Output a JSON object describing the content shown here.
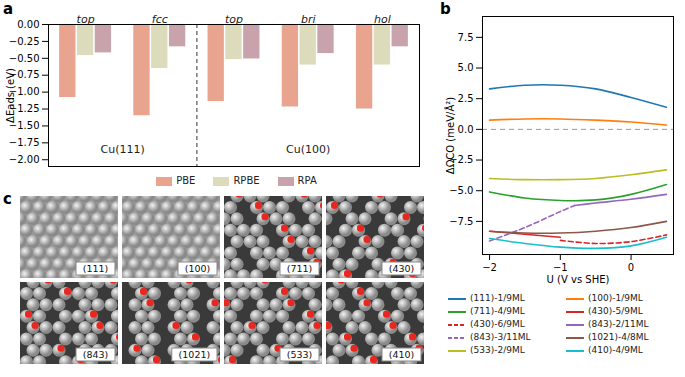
{
  "chart_data": [
    {
      "panel": "a",
      "type": "bar",
      "categories": [
        "top",
        "fcc",
        "top",
        "bri",
        "hol"
      ],
      "group_labels": [
        "Cu(111)",
        "Cu(100)"
      ],
      "group_sizes": [
        2,
        3
      ],
      "ylabel": "ΔEads (eV)",
      "series": [
        {
          "name": "PBE",
          "color": "#e8a48e",
          "values": [
            -1.08,
            -1.35,
            -1.14,
            -1.22,
            -1.25
          ]
        },
        {
          "name": "RPBE",
          "color": "#dcdcbc",
          "values": [
            -0.46,
            -0.65,
            -0.52,
            -0.6,
            -0.6
          ]
        },
        {
          "name": "RPA",
          "color": "#c9a3ab",
          "values": [
            -0.42,
            -0.33,
            -0.51,
            -0.43,
            -0.33
          ]
        }
      ],
      "ylim": [
        -2.1,
        0
      ],
      "yticks": [
        {
          "value": 0,
          "label": "0.00"
        },
        {
          "value": -0.25,
          "label": "−0.25"
        },
        {
          "value": -0.5,
          "label": "−0.50"
        },
        {
          "value": -0.75,
          "label": "−0.75"
        },
        {
          "value": -1,
          "label": "−1.00"
        },
        {
          "value": -1.25,
          "label": "−1.25"
        },
        {
          "value": -1.5,
          "label": "−1.50"
        },
        {
          "value": -1.75,
          "label": "−1.75"
        },
        {
          "value": -2,
          "label": "−2.00"
        }
      ],
      "legend": "bottom"
    },
    {
      "panel": "b",
      "type": "line",
      "xlabel": "U (V vs SHE)",
      "ylabel": "ΔΩCO (meV/Å²)",
      "series": [
        {
          "name": "(111)-1/9ML",
          "color": "#1f77b4",
          "line_style": "solid",
          "x": [
            -2,
            -1.5,
            -1,
            -0.5,
            0,
            0.5
          ],
          "values": [
            3.3,
            3.6,
            3.6,
            3.3,
            2.6,
            1.8
          ]
        },
        {
          "name": "(100)-1/9ML",
          "color": "#ff7f0e",
          "line_style": "solid",
          "x": [
            -2,
            -1.5,
            -1,
            -0.5,
            0,
            0.5
          ],
          "values": [
            0.75,
            0.85,
            0.85,
            0.75,
            0.6,
            0.35
          ]
        },
        {
          "name": "(711)-4/9ML",
          "color": "#2ca02c",
          "line_style": "solid",
          "x": [
            -2,
            -1.5,
            -1,
            -0.5,
            0,
            0.5
          ],
          "values": [
            -5.1,
            -5.6,
            -5.8,
            -5.75,
            -5.3,
            -4.5
          ]
        },
        {
          "name": "(430)-5/9ML",
          "color": "#d62728",
          "line_style": "solid",
          "x": [
            -2,
            -1.5,
            -1
          ],
          "values": [
            -8.3,
            -8.55,
            -8.8
          ]
        },
        {
          "name": "(430)-6/9ML",
          "color": "#d62728",
          "line_style": "dashed",
          "x": [
            -1,
            -0.5,
            0,
            0.5
          ],
          "values": [
            -9.05,
            -9.3,
            -9.15,
            -8.6
          ]
        },
        {
          "name": "(843)-2/11ML",
          "color": "#9467bd",
          "line_style": "solid",
          "x": [
            -0.8,
            -0.5,
            0,
            0.5
          ],
          "values": [
            -6.2,
            -6.0,
            -5.7,
            -5.3
          ]
        },
        {
          "name": "(843)-3/11ML",
          "color": "#9467bd",
          "line_style": "dashed",
          "x": [
            -2,
            -1.5,
            -1,
            -0.8
          ],
          "values": [
            -9.1,
            -8.0,
            -6.7,
            -6.2
          ]
        },
        {
          "name": "(1021)-4/8ML",
          "color": "#8c564b",
          "line_style": "solid",
          "x": [
            -2,
            -1.5,
            -1,
            -0.5,
            0,
            0.5
          ],
          "values": [
            -8.3,
            -8.45,
            -8.45,
            -8.3,
            -8.0,
            -7.5
          ]
        },
        {
          "name": "(533)-2/9ML",
          "color": "#bcbd22",
          "line_style": "solid",
          "x": [
            -2,
            -1.5,
            -1,
            -0.5,
            0,
            0.5
          ],
          "values": [
            -4.0,
            -4.1,
            -4.1,
            -4.0,
            -3.7,
            -3.3
          ]
        },
        {
          "name": "(410)-4/9ML",
          "color": "#17becf",
          "line_style": "solid",
          "x": [
            -2,
            -1.5,
            -1,
            -0.5,
            0,
            0.5
          ],
          "values": [
            -8.9,
            -9.3,
            -9.6,
            -9.7,
            -9.5,
            -8.8
          ]
        }
      ],
      "rule_y": 0,
      "xlim": [
        -2.1,
        0.6
      ],
      "xticks": [
        {
          "value": -2,
          "label": "−2"
        },
        {
          "value": -1,
          "label": "−1"
        },
        0
      ],
      "ylim": [
        -10.2,
        9.2
      ],
      "yticks": [
        {
          "value": -7.5,
          "label": "−7.5"
        },
        {
          "value": -5,
          "label": "−5.0"
        },
        {
          "value": -2.5,
          "label": "−2.5"
        },
        {
          "value": 0,
          "label": "0.0"
        },
        2.5,
        {
          "value": 5,
          "label": "5.0"
        },
        7.5
      ],
      "legend": "bottom"
    }
  ],
  "image_panel": {
    "panel": "c",
    "labels": [
      "(111)",
      "(100)",
      "(711)",
      "(430)",
      "(843)",
      "(1021)",
      "(533)",
      "(410)"
    ]
  }
}
